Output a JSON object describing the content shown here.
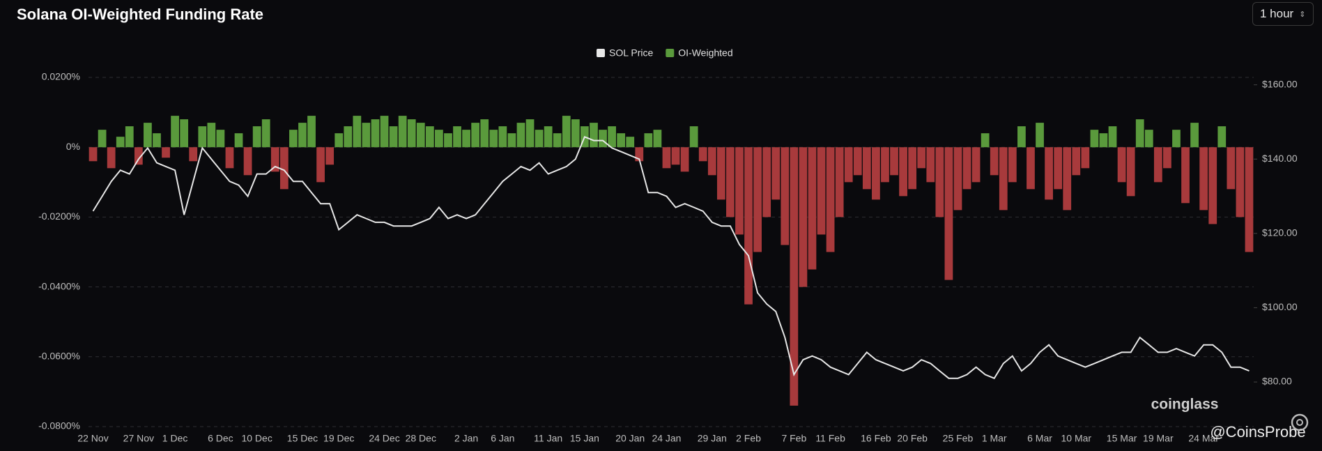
{
  "header": {
    "title": "Solana OI-Weighted Funding Rate",
    "interval": "1 hour"
  },
  "watermarks": [
    "coinglass",
    "@CoinsProbe"
  ],
  "chart_data": {
    "type": "bar-line",
    "categories": [
      "22 Nov",
      null,
      null,
      null,
      null,
      "27 Nov",
      null,
      null,
      null,
      "1 Dec",
      null,
      null,
      null,
      null,
      "6 Dec",
      null,
      null,
      null,
      "10 Dec",
      null,
      null,
      null,
      null,
      "15 Dec",
      null,
      null,
      null,
      "19 Dec",
      null,
      null,
      null,
      null,
      "24 Dec",
      null,
      null,
      null,
      "28 Dec",
      null,
      null,
      null,
      null,
      "2 Jan",
      null,
      null,
      null,
      "6 Jan",
      null,
      null,
      null,
      null,
      "11 Jan",
      null,
      null,
      null,
      "15 Jan",
      null,
      null,
      null,
      null,
      "20 Jan",
      null,
      null,
      null,
      "24 Jan",
      null,
      null,
      null,
      null,
      "29 Jan",
      null,
      null,
      null,
      "2 Feb",
      null,
      null,
      null,
      null,
      "7 Feb",
      null,
      null,
      null,
      "11 Feb",
      null,
      null,
      null,
      null,
      "16 Feb",
      null,
      null,
      null,
      "20 Feb",
      null,
      null,
      null,
      null,
      "25 Feb",
      null,
      null,
      null,
      "1 Mar",
      null,
      null,
      null,
      null,
      "6 Mar",
      null,
      null,
      null,
      "10 Mar",
      null,
      null,
      null,
      null,
      "15 Mar",
      null,
      null,
      null,
      "19 Mar",
      null,
      null,
      null,
      null,
      "24 Mar",
      null,
      null,
      null,
      null,
      null
    ],
    "series": [
      {
        "name": "SOL Price",
        "color": "#e8e8e8",
        "kind": "line",
        "axis": "y2",
        "values": [
          126,
          130,
          134,
          137,
          136,
          140,
          143,
          139,
          138,
          137,
          125,
          134,
          143,
          140,
          137,
          134,
          133,
          130,
          136,
          136,
          138,
          137,
          134,
          134,
          131,
          128,
          128,
          121,
          123,
          125,
          124,
          123,
          123,
          122,
          122,
          122,
          123,
          124,
          127,
          124,
          125,
          124,
          125,
          128,
          131,
          134,
          136,
          138,
          137,
          139,
          136,
          137,
          138,
          140,
          146,
          145,
          145,
          143,
          142,
          141,
          140,
          131,
          131,
          130,
          127,
          128,
          127,
          126,
          123,
          122,
          122,
          117,
          114,
          104,
          101,
          99,
          92,
          82,
          86,
          87,
          86,
          84,
          83,
          82,
          85,
          88,
          86,
          85,
          84,
          83,
          84,
          86,
          85,
          83,
          81,
          81,
          82,
          84,
          82,
          81,
          85,
          87,
          83,
          85,
          88,
          90,
          87,
          86,
          85,
          84,
          85,
          86,
          87,
          88,
          88,
          92,
          90,
          88,
          88,
          89,
          88,
          87,
          90,
          90,
          88,
          84,
          84,
          83
        ]
      },
      {
        "name": "OI-Weighted",
        "color": "#5a9a3c",
        "negative_color": "#a83a3c",
        "kind": "bar",
        "values": [
          -0.004,
          0.005,
          -0.006,
          0.003,
          0.006,
          -0.005,
          0.007,
          0.004,
          -0.003,
          0.009,
          0.008,
          -0.004,
          0.006,
          0.007,
          0.005,
          -0.006,
          0.004,
          -0.008,
          0.006,
          0.008,
          -0.007,
          -0.012,
          0.005,
          0.007,
          0.009,
          -0.01,
          -0.005,
          0.004,
          0.006,
          0.009,
          0.007,
          0.008,
          0.009,
          0.006,
          0.009,
          0.008,
          0.007,
          0.006,
          0.005,
          0.004,
          0.006,
          0.005,
          0.007,
          0.008,
          0.005,
          0.006,
          0.004,
          0.007,
          0.008,
          0.005,
          0.006,
          0.004,
          0.009,
          0.008,
          0.006,
          0.007,
          0.005,
          0.006,
          0.004,
          0.003,
          -0.004,
          0.004,
          0.005,
          -0.006,
          -0.005,
          -0.007,
          0.006,
          -0.004,
          -0.008,
          -0.015,
          -0.02,
          -0.025,
          -0.045,
          -0.03,
          -0.02,
          -0.015,
          -0.028,
          -0.074,
          -0.04,
          -0.035,
          -0.025,
          -0.03,
          -0.02,
          -0.01,
          -0.008,
          -0.012,
          -0.015,
          -0.01,
          -0.008,
          -0.014,
          -0.012,
          -0.006,
          -0.01,
          -0.02,
          -0.038,
          -0.018,
          -0.012,
          -0.01,
          0.004,
          -0.008,
          -0.018,
          -0.01,
          0.006,
          -0.012,
          0.007,
          -0.015,
          -0.012,
          -0.018,
          -0.008,
          -0.006,
          0.005,
          0.004,
          0.006,
          -0.01,
          -0.014,
          0.008,
          0.005,
          -0.01,
          -0.006,
          0.005,
          -0.016,
          0.007,
          -0.018,
          -0.022,
          0.006,
          -0.012,
          -0.02,
          -0.03
        ]
      }
    ],
    "ylim": [
      -0.08,
      0.02
    ],
    "yticks": [
      {
        "value": 0.02,
        "label": "0.0200%"
      },
      {
        "value": 0,
        "label": "0%"
      },
      {
        "value": -0.02,
        "label": "-0.0200%"
      },
      {
        "value": -0.04,
        "label": "-0.0400%"
      },
      {
        "value": -0.06,
        "label": "-0.0600%"
      },
      {
        "value": -0.08,
        "label": "-0.0800%"
      }
    ],
    "y2lim": [
      68,
      162
    ],
    "y2ticks": [
      {
        "value": 160,
        "label": "$160.00"
      },
      {
        "value": 140,
        "label": "$140.00"
      },
      {
        "value": 120,
        "label": "$120.00"
      },
      {
        "value": 100,
        "label": "$100.00"
      },
      {
        "value": 80,
        "label": "$80.00"
      }
    ],
    "grid": true,
    "legend": "top"
  }
}
